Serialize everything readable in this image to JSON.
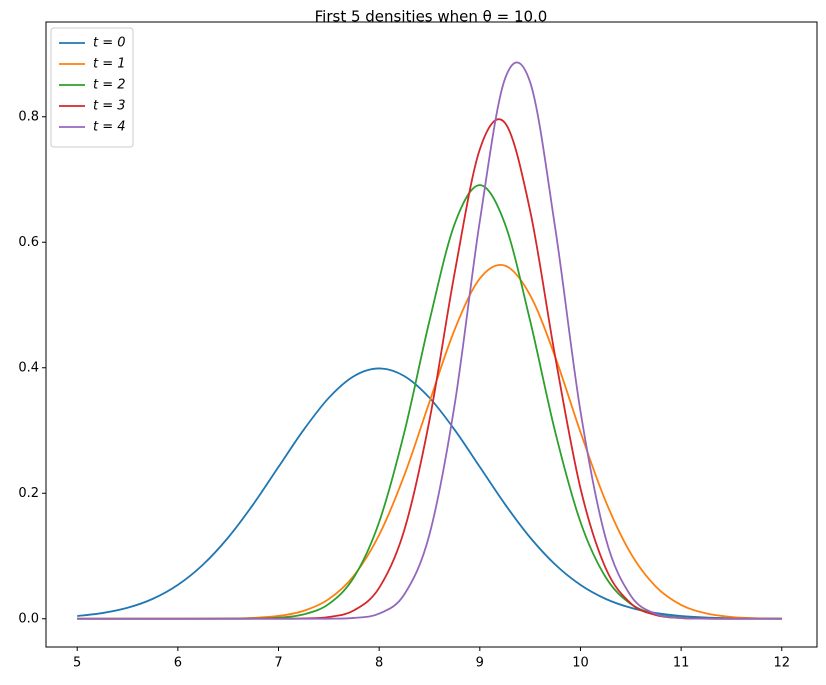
{
  "chart_data": {
    "type": "line",
    "title": "First 5 densities when θ = 10.0",
    "x": [
      5,
      5.25,
      5.5,
      5.75,
      6,
      6.25,
      6.5,
      6.75,
      7,
      7.25,
      7.5,
      7.75,
      8,
      8.25,
      8.5,
      8.75,
      9,
      9.25,
      9.5,
      9.75,
      10,
      10.25,
      10.5,
      10.75,
      11,
      11.25,
      11.5,
      11.75,
      12
    ],
    "series": [
      {
        "name": "t = 0",
        "color": "#1f77b4",
        "values": [
          0.0044,
          0.0091,
          0.0175,
          0.0317,
          0.054,
          0.0863,
          0.1295,
          0.1826,
          0.242,
          0.3011,
          0.3521,
          0.3867,
          0.3989,
          0.3867,
          0.3521,
          0.3011,
          0.242,
          0.1826,
          0.1295,
          0.0863,
          0.054,
          0.0317,
          0.0175,
          0.0091,
          0.0044,
          0.002,
          0.0009,
          0.0004,
          0.0001
        ]
      },
      {
        "name": "t = 1",
        "color": "#ff7f0e",
        "values": [
          0,
          0,
          0,
          0,
          0,
          0.0001,
          0.0004,
          0.0014,
          0.0045,
          0.0126,
          0.0314,
          0.0689,
          0.1337,
          0.2288,
          0.3456,
          0.4608,
          0.5421,
          0.5628,
          0.5156,
          0.4169,
          0.2975,
          0.1874,
          0.1041,
          0.0511,
          0.0221,
          0.0085,
          0.0028,
          0.0008,
          0.0002
        ]
      },
      {
        "name": "t = 2",
        "color": "#2ca02c",
        "values": [
          0,
          0,
          0,
          0,
          0,
          0,
          0.0001,
          0.0003,
          0.0017,
          0.007,
          0.0236,
          0.0663,
          0.1542,
          0.2971,
          0.4749,
          0.6292,
          0.691,
          0.6292,
          0.4749,
          0.2971,
          0.1542,
          0.0663,
          0.0236,
          0.007,
          0.0017,
          0.0003,
          0.0001,
          0,
          0
        ]
      },
      {
        "name": "t = 3",
        "color": "#d62728",
        "values": [
          0,
          0,
          0,
          0,
          0,
          0,
          0,
          0,
          0.0001,
          0.0005,
          0.0028,
          0.0134,
          0.0493,
          0.1415,
          0.3165,
          0.5512,
          0.748,
          0.7902,
          0.6502,
          0.4167,
          0.208,
          0.0808,
          0.0245,
          0.0058,
          0.0011,
          0.0002,
          0,
          0,
          0
        ]
      },
      {
        "name": "t = 4",
        "color": "#9467bd",
        "values": [
          0,
          0,
          0,
          0,
          0,
          0,
          0,
          0,
          0,
          0,
          0.0001,
          0.0013,
          0.0082,
          0.0388,
          0.1345,
          0.3412,
          0.6336,
          0.8604,
          0.8551,
          0.6217,
          0.3308,
          0.1287,
          0.0367,
          0.0076,
          0.0012,
          0.0001,
          0,
          0,
          0
        ]
      }
    ],
    "xlim": [
      4.69,
      12.35
    ],
    "ylim": [
      -0.045,
      0.951
    ],
    "xticks": [
      5,
      6,
      7,
      8,
      9,
      10,
      11,
      12
    ],
    "yticks": [
      {
        "value": 0,
        "label": "0.0"
      },
      0.2,
      0.4,
      0.6,
      0.8
    ],
    "legend": "upper left"
  }
}
